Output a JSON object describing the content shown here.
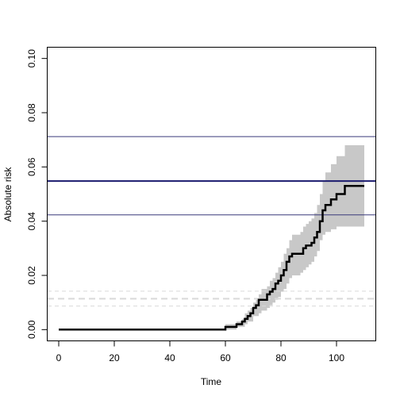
{
  "chart_data": {
    "type": "line",
    "title": "",
    "xlabel": "Time",
    "ylabel": "Absolute risk",
    "xlim": [
      -4,
      114
    ],
    "ylim": [
      -0.004,
      0.104
    ],
    "x_ticks": [
      0,
      20,
      40,
      60,
      80,
      100
    ],
    "y_ticks": [
      0.0,
      0.02,
      0.04,
      0.06,
      0.08,
      0.1
    ],
    "x_tick_labels": [
      "0",
      "20",
      "40",
      "60",
      "80",
      "100"
    ],
    "y_tick_labels": [
      "0.00",
      "0.02",
      "0.04",
      "0.06",
      "0.08",
      "0.10"
    ],
    "grid": false,
    "legend": "none",
    "series": [
      {
        "role": "risk-step",
        "color": "#000000",
        "x": [
          0,
          60,
          62,
          64,
          66,
          67,
          68,
          69,
          70,
          71,
          72,
          73,
          75,
          76,
          77,
          78,
          79,
          80,
          81,
          82,
          83,
          84,
          87,
          88,
          89,
          90,
          91,
          92,
          93,
          94,
          95,
          96,
          98,
          100,
          103,
          110
        ],
        "y": [
          0.0,
          0.001,
          0.001,
          0.002,
          0.003,
          0.004,
          0.005,
          0.006,
          0.008,
          0.009,
          0.011,
          0.011,
          0.013,
          0.014,
          0.015,
          0.017,
          0.018,
          0.02,
          0.022,
          0.025,
          0.027,
          0.028,
          0.028,
          0.03,
          0.031,
          0.031,
          0.032,
          0.034,
          0.036,
          0.04,
          0.044,
          0.046,
          0.048,
          0.05,
          0.053,
          0.053
        ]
      }
    ],
    "confidence_band": {
      "color": "#c8c8c8",
      "x": [
        60,
        62,
        64,
        66,
        67,
        68,
        69,
        70,
        71,
        72,
        73,
        75,
        76,
        77,
        78,
        79,
        80,
        81,
        82,
        83,
        84,
        87,
        88,
        89,
        90,
        91,
        92,
        93,
        94,
        95,
        96,
        98,
        100,
        103,
        110
      ],
      "lower": [
        0.0,
        0.0,
        0.001,
        0.001,
        0.002,
        0.003,
        0.003,
        0.005,
        0.005,
        0.006,
        0.007,
        0.008,
        0.009,
        0.01,
        0.011,
        0.012,
        0.014,
        0.015,
        0.017,
        0.019,
        0.02,
        0.021,
        0.022,
        0.023,
        0.024,
        0.025,
        0.027,
        0.029,
        0.033,
        0.035,
        0.036,
        0.037,
        0.038,
        0.038,
        0.038
      ],
      "upper": [
        0.002,
        0.002,
        0.003,
        0.004,
        0.006,
        0.007,
        0.008,
        0.01,
        0.011,
        0.013,
        0.015,
        0.016,
        0.018,
        0.019,
        0.021,
        0.023,
        0.025,
        0.028,
        0.03,
        0.033,
        0.035,
        0.036,
        0.038,
        0.039,
        0.04,
        0.041,
        0.043,
        0.046,
        0.05,
        0.055,
        0.058,
        0.061,
        0.064,
        0.068,
        0.068
      ]
    },
    "reference_lines": [
      {
        "kind": "thin",
        "color": "#3a3a7a",
        "y": 0.0712
      },
      {
        "kind": "thick",
        "color": "#1a1a6e",
        "y": 0.0548
      },
      {
        "kind": "thin",
        "color": "#3a3a7a",
        "y": 0.0423
      },
      {
        "kind": "dashed",
        "color": "#d9d9d9",
        "y": 0.0142
      },
      {
        "kind": "dashed-thick",
        "color": "#d9d9d9",
        "y": 0.0114
      },
      {
        "kind": "dashed",
        "color": "#d9d9d9",
        "y": 0.0087
      }
    ]
  }
}
